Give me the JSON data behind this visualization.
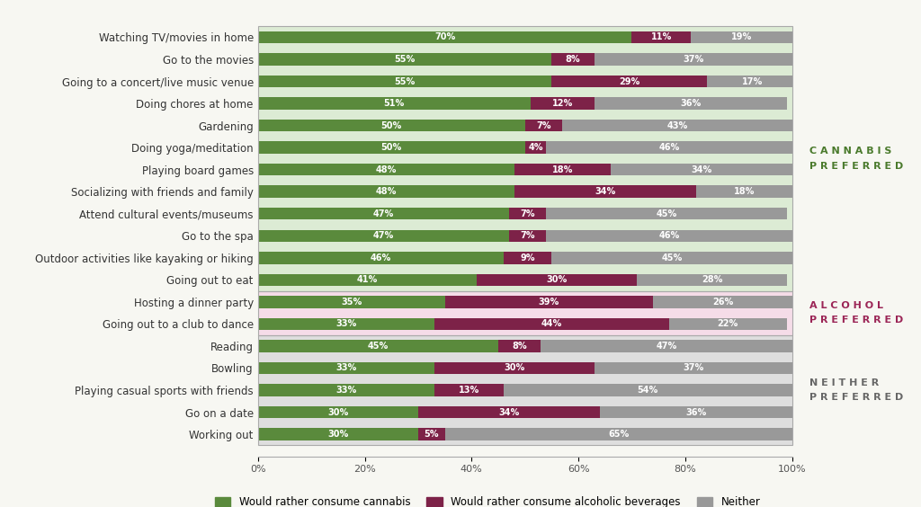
{
  "categories": [
    "Watching TV/movies in home",
    "Go to the movies",
    "Going to a concert/live music venue",
    "Doing chores at home",
    "Gardening",
    "Doing yoga/meditation",
    "Playing board games",
    "Socializing with friends and family",
    "Attend cultural events/museums",
    "Go to the spa",
    "Outdoor activities like kayaking or hiking",
    "Going out to eat",
    "Hosting a dinner party",
    "Going out to a club to dance",
    "Reading",
    "Bowling",
    "Playing casual sports with friends",
    "Go on a date",
    "Working out"
  ],
  "cannabis": [
    70,
    55,
    55,
    51,
    50,
    50,
    48,
    48,
    47,
    47,
    46,
    41,
    35,
    33,
    45,
    33,
    33,
    30,
    30
  ],
  "alcohol": [
    11,
    8,
    29,
    12,
    7,
    4,
    18,
    34,
    7,
    7,
    9,
    30,
    39,
    44,
    8,
    30,
    13,
    34,
    5
  ],
  "neither": [
    19,
    37,
    17,
    36,
    43,
    46,
    34,
    18,
    45,
    46,
    45,
    28,
    26,
    22,
    47,
    37,
    54,
    36,
    65
  ],
  "section_backgrounds": {
    "cannabis": "#dcebd4",
    "alcohol": "#f5dce8",
    "neither": "#dedede"
  },
  "section_labels": {
    "cannabis": "C A N N A B I S\nP R E F E R R E D",
    "alcohol": "A L C O H O L\nP R E F E R R E D",
    "neither": "N E I T H E R\nP R E F E R R E D"
  },
  "section_indices": {
    "cannabis": [
      0,
      11
    ],
    "alcohol": [
      12,
      13
    ],
    "neither": [
      14,
      18
    ]
  },
  "colors": {
    "cannabis": "#5a8a3c",
    "alcohol": "#7d2248",
    "neither": "#999999"
  },
  "section_label_colors": {
    "cannabis": "#4a7a2c",
    "alcohol": "#9b2556",
    "neither": "#666666"
  },
  "legend_labels": [
    "Would rather consume cannabis",
    "Would rather consume alcoholic beverages",
    "Neither"
  ],
  "figsize": [
    10.24,
    5.64
  ],
  "dpi": 100,
  "background_color": "#f7f7f2"
}
